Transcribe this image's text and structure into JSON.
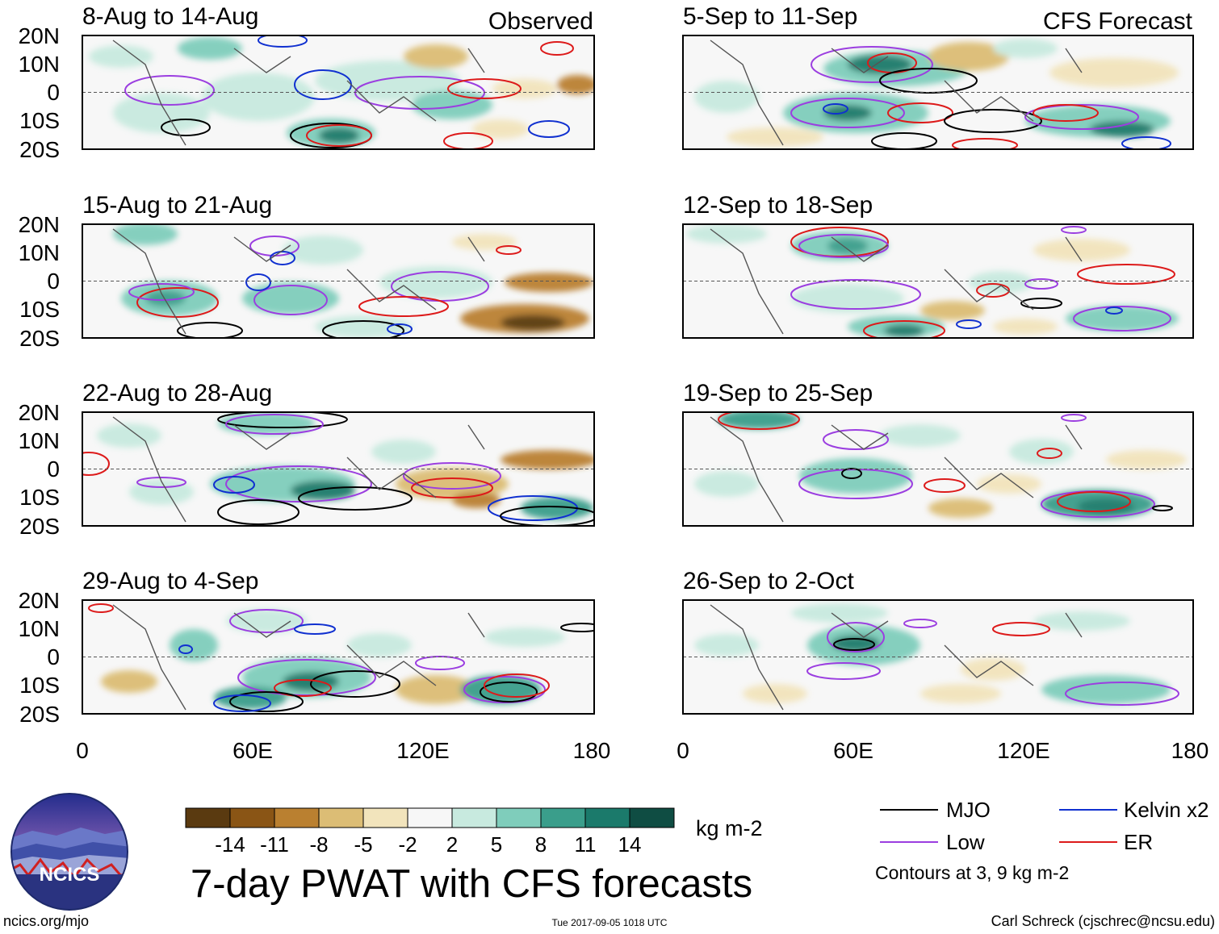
{
  "panels": [
    {
      "title": "8-Aug to 14-Aug",
      "tag": "Observed"
    },
    {
      "title": "5-Sep to 11-Sep",
      "tag": "CFS Forecast"
    },
    {
      "title": "15-Aug to 21-Aug",
      "tag": ""
    },
    {
      "title": "12-Sep to 18-Sep",
      "tag": ""
    },
    {
      "title": "22-Aug to 28-Aug",
      "tag": ""
    },
    {
      "title": "19-Sep to 25-Sep",
      "tag": ""
    },
    {
      "title": "29-Aug to 4-Sep",
      "tag": ""
    },
    {
      "title": "26-Sep to 2-Oct",
      "tag": ""
    }
  ],
  "lat_ticks": [
    "20N",
    "10N",
    "0",
    "10S",
    "20S"
  ],
  "lon_ticks": [
    "0",
    "60E",
    "120E",
    "180"
  ],
  "colorbar": {
    "labels": [
      "-14",
      "-11",
      "-8",
      "-5",
      "-2",
      "2",
      "5",
      "8",
      "11",
      "14"
    ],
    "colors": [
      "#5a3a10",
      "#8a5515",
      "#ba8030",
      "#dcbd75",
      "#f2e4bc",
      "#f7f7f7",
      "#c8eadf",
      "#7fcdbb",
      "#3a9e8b",
      "#1b7a6b",
      "#0f4d43"
    ],
    "units": "kg m-2"
  },
  "legend": {
    "items": [
      {
        "label": "MJO",
        "color": "#000000"
      },
      {
        "label": "Kelvin x2",
        "color": "#1030d0"
      },
      {
        "label": "Low",
        "color": "#9b3ee0"
      },
      {
        "label": "ER",
        "color": "#dd1a1a"
      }
    ],
    "note": "Contours at 3, 9 kg m-2"
  },
  "main_title": "7-day PWAT with CFS forecasts",
  "logo_text": "NCICS",
  "footer": {
    "left": "ncics.org/mjo",
    "center": "Tue 2017-09-05 1018 UTC",
    "right": "Carl Schreck (cjschrec@ncsu.edu)"
  }
}
